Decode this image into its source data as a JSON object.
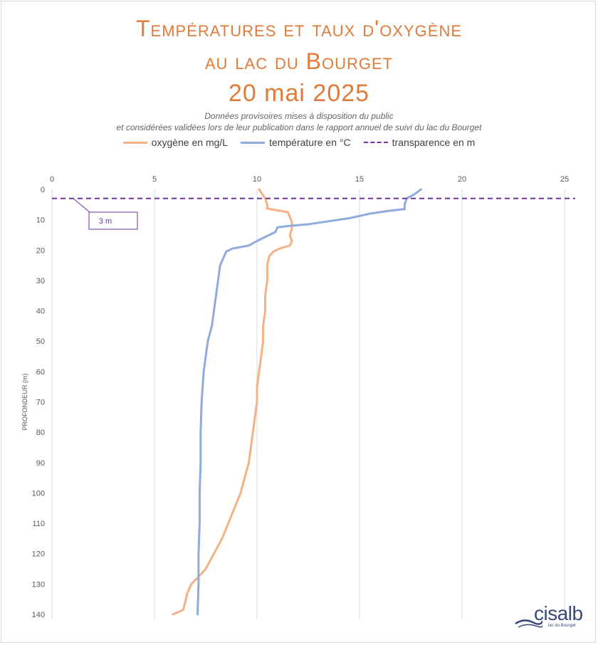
{
  "header": {
    "title_line1": "Températures et taux d'oxygène",
    "title_line2": "au lac du Bourget",
    "title_line3": "20 mai 2025",
    "subtitle_line1": "Données provisoires mises à disposition du public",
    "subtitle_line2": "et considérées validées lors de leur publication dans le rapport annuel de suivi du lac du Bourget"
  },
  "logo": {
    "name": "cisalb",
    "tagline": "lac du Bourget"
  },
  "colors": {
    "oxygen": "#f4b183",
    "temperature": "#8faadc",
    "transparency": "#7030a0",
    "grid": "#d9d9d9"
  },
  "chart_data": {
    "type": "line",
    "title": "Températures et taux d'oxygène au lac du Bourget 20 mai 2025",
    "xlabel": "",
    "ylabel": "PROFONDEUR (m)",
    "xlim": [
      0,
      25
    ],
    "ylim": [
      0,
      140
    ],
    "y_inverted": true,
    "grid": true,
    "legend_position": "top",
    "x_ticks": [
      0,
      5,
      10,
      15,
      20,
      25
    ],
    "y_ticks": [
      0,
      10,
      20,
      30,
      40,
      50,
      60,
      70,
      80,
      90,
      100,
      110,
      120,
      130,
      140
    ],
    "series": [
      {
        "name": "oxygène en mg/L",
        "points": [
          [
            10.1,
            0
          ],
          [
            10.2,
            1
          ],
          [
            10.4,
            3
          ],
          [
            10.5,
            5
          ],
          [
            10.5,
            6.3
          ],
          [
            10.9,
            6.8
          ],
          [
            11.5,
            7.5
          ],
          [
            11.6,
            9
          ],
          [
            11.7,
            11
          ],
          [
            11.7,
            13
          ],
          [
            11.6,
            15
          ],
          [
            11.7,
            17
          ],
          [
            11.6,
            18.5
          ],
          [
            11.1,
            19.5
          ],
          [
            10.8,
            20.5
          ],
          [
            10.6,
            22
          ],
          [
            10.5,
            25
          ],
          [
            10.5,
            30
          ],
          [
            10.4,
            35
          ],
          [
            10.4,
            40
          ],
          [
            10.3,
            45
          ],
          [
            10.3,
            50
          ],
          [
            10.2,
            55
          ],
          [
            10.1,
            60
          ],
          [
            10.0,
            65
          ],
          [
            10.0,
            70
          ],
          [
            9.9,
            75
          ],
          [
            9.8,
            80
          ],
          [
            9.7,
            85
          ],
          [
            9.6,
            90
          ],
          [
            9.4,
            95
          ],
          [
            9.2,
            100
          ],
          [
            8.9,
            105
          ],
          [
            8.6,
            110
          ],
          [
            8.3,
            115
          ],
          [
            7.9,
            120
          ],
          [
            7.5,
            125
          ],
          [
            7.1,
            128
          ],
          [
            6.8,
            130
          ],
          [
            6.6,
            133
          ],
          [
            6.5,
            136
          ],
          [
            6.4,
            138.5
          ],
          [
            5.9,
            140
          ]
        ]
      },
      {
        "name": "température en °C",
        "points": [
          [
            18.0,
            0
          ],
          [
            17.7,
            1.5
          ],
          [
            17.3,
            3
          ],
          [
            17.2,
            5
          ],
          [
            17.2,
            6.5
          ],
          [
            16.5,
            7
          ],
          [
            15.5,
            8
          ],
          [
            14.5,
            9.5
          ],
          [
            13.5,
            10.5
          ],
          [
            12.5,
            11.5
          ],
          [
            11.6,
            12
          ],
          [
            11.0,
            12.5
          ],
          [
            10.9,
            14
          ],
          [
            10.6,
            15
          ],
          [
            10.0,
            17
          ],
          [
            9.6,
            18.5
          ],
          [
            8.8,
            19.5
          ],
          [
            8.5,
            20.5
          ],
          [
            8.4,
            22
          ],
          [
            8.2,
            25
          ],
          [
            8.1,
            30
          ],
          [
            8.0,
            35
          ],
          [
            7.9,
            40
          ],
          [
            7.8,
            45
          ],
          [
            7.6,
            50
          ],
          [
            7.5,
            55
          ],
          [
            7.4,
            60
          ],
          [
            7.35,
            65
          ],
          [
            7.3,
            70
          ],
          [
            7.25,
            80
          ],
          [
            7.25,
            90
          ],
          [
            7.2,
            100
          ],
          [
            7.2,
            110
          ],
          [
            7.15,
            120
          ],
          [
            7.15,
            130
          ],
          [
            7.1,
            140
          ]
        ]
      },
      {
        "name": "transparence en m",
        "style": "dashed",
        "depth": 3,
        "label": "3 m"
      }
    ]
  }
}
